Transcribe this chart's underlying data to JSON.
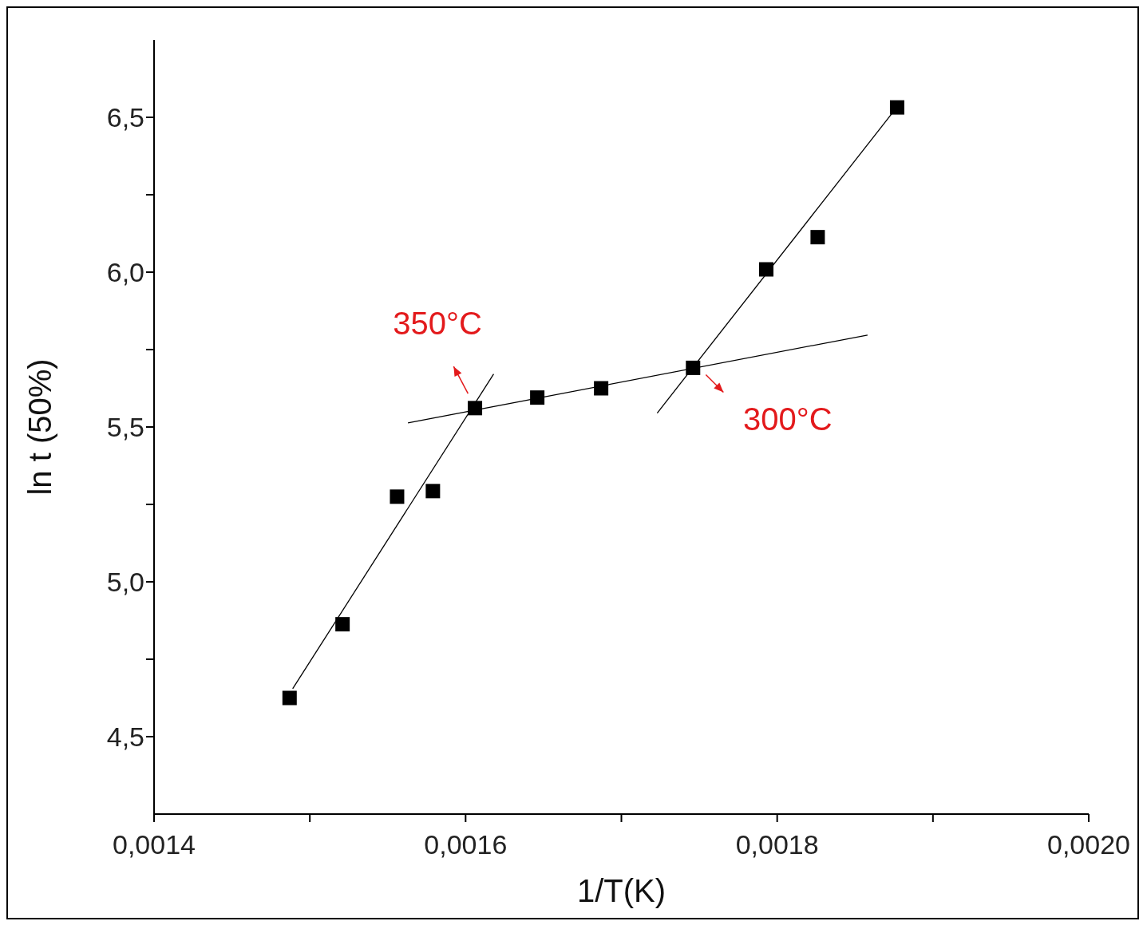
{
  "chart_data": {
    "type": "scatter",
    "xlabel": "1/T(K)",
    "ylabel": "ln t (50%)",
    "xlim": [
      0.0014,
      0.002
    ],
    "xticks": [
      {
        "value": 0.0014,
        "label": "0,0014"
      },
      {
        "value": 0.0015,
        "label": null
      },
      {
        "value": 0.0016,
        "label": "0,0016"
      },
      {
        "value": 0.0017,
        "label": null
      },
      {
        "value": 0.0018,
        "label": "0,0018"
      },
      {
        "value": 0.0019,
        "label": null
      },
      {
        "value": 0.002,
        "label": "0,0020"
      }
    ],
    "ylim": [
      4.25,
      6.75
    ],
    "yticks": [
      {
        "value": 4.5,
        "label": "4,5"
      },
      {
        "value": 4.75,
        "label": null
      },
      {
        "value": 5.0,
        "label": "5,0"
      },
      {
        "value": 5.25,
        "label": null
      },
      {
        "value": 5.5,
        "label": "5,5"
      },
      {
        "value": 5.75,
        "label": null
      },
      {
        "value": 6.0,
        "label": "6,0"
      },
      {
        "value": 6.25,
        "label": null
      },
      {
        "value": 6.5,
        "label": "6,5"
      }
    ],
    "grid": false,
    "legend": false,
    "series": [
      {
        "marker": "square",
        "color": "#000000",
        "x": [
          0.001487,
          0.001521,
          0.001556,
          0.001579,
          0.001606,
          0.001646,
          0.001687,
          0.001746,
          0.001793,
          0.001826,
          0.001877
        ],
        "values": [
          4.625,
          4.863,
          5.275,
          5.293,
          5.561,
          5.595,
          5.625,
          5.691,
          6.009,
          6.113,
          6.532
        ]
      },
      {
        "type": "line",
        "marker": "none",
        "line_style": "solid",
        "color": "#000000",
        "x": [
          0.001489,
          0.001618
        ],
        "values": [
          4.655,
          5.671
        ]
      },
      {
        "type": "line",
        "marker": "none",
        "line_style": "solid",
        "color": "#000000",
        "x": [
          0.001563,
          0.001858
        ],
        "values": [
          5.513,
          5.797
        ]
      },
      {
        "type": "line",
        "marker": "none",
        "line_style": "solid",
        "color": "#000000",
        "x": [
          0.001723,
          0.001875
        ],
        "values": [
          5.545,
          6.521
        ]
      }
    ],
    "annotations": [
      {
        "text": "350°C",
        "x": 0.001605,
        "y": 5.575
      },
      {
        "text": "300°C",
        "x": 0.00175,
        "y": 5.69
      }
    ]
  }
}
